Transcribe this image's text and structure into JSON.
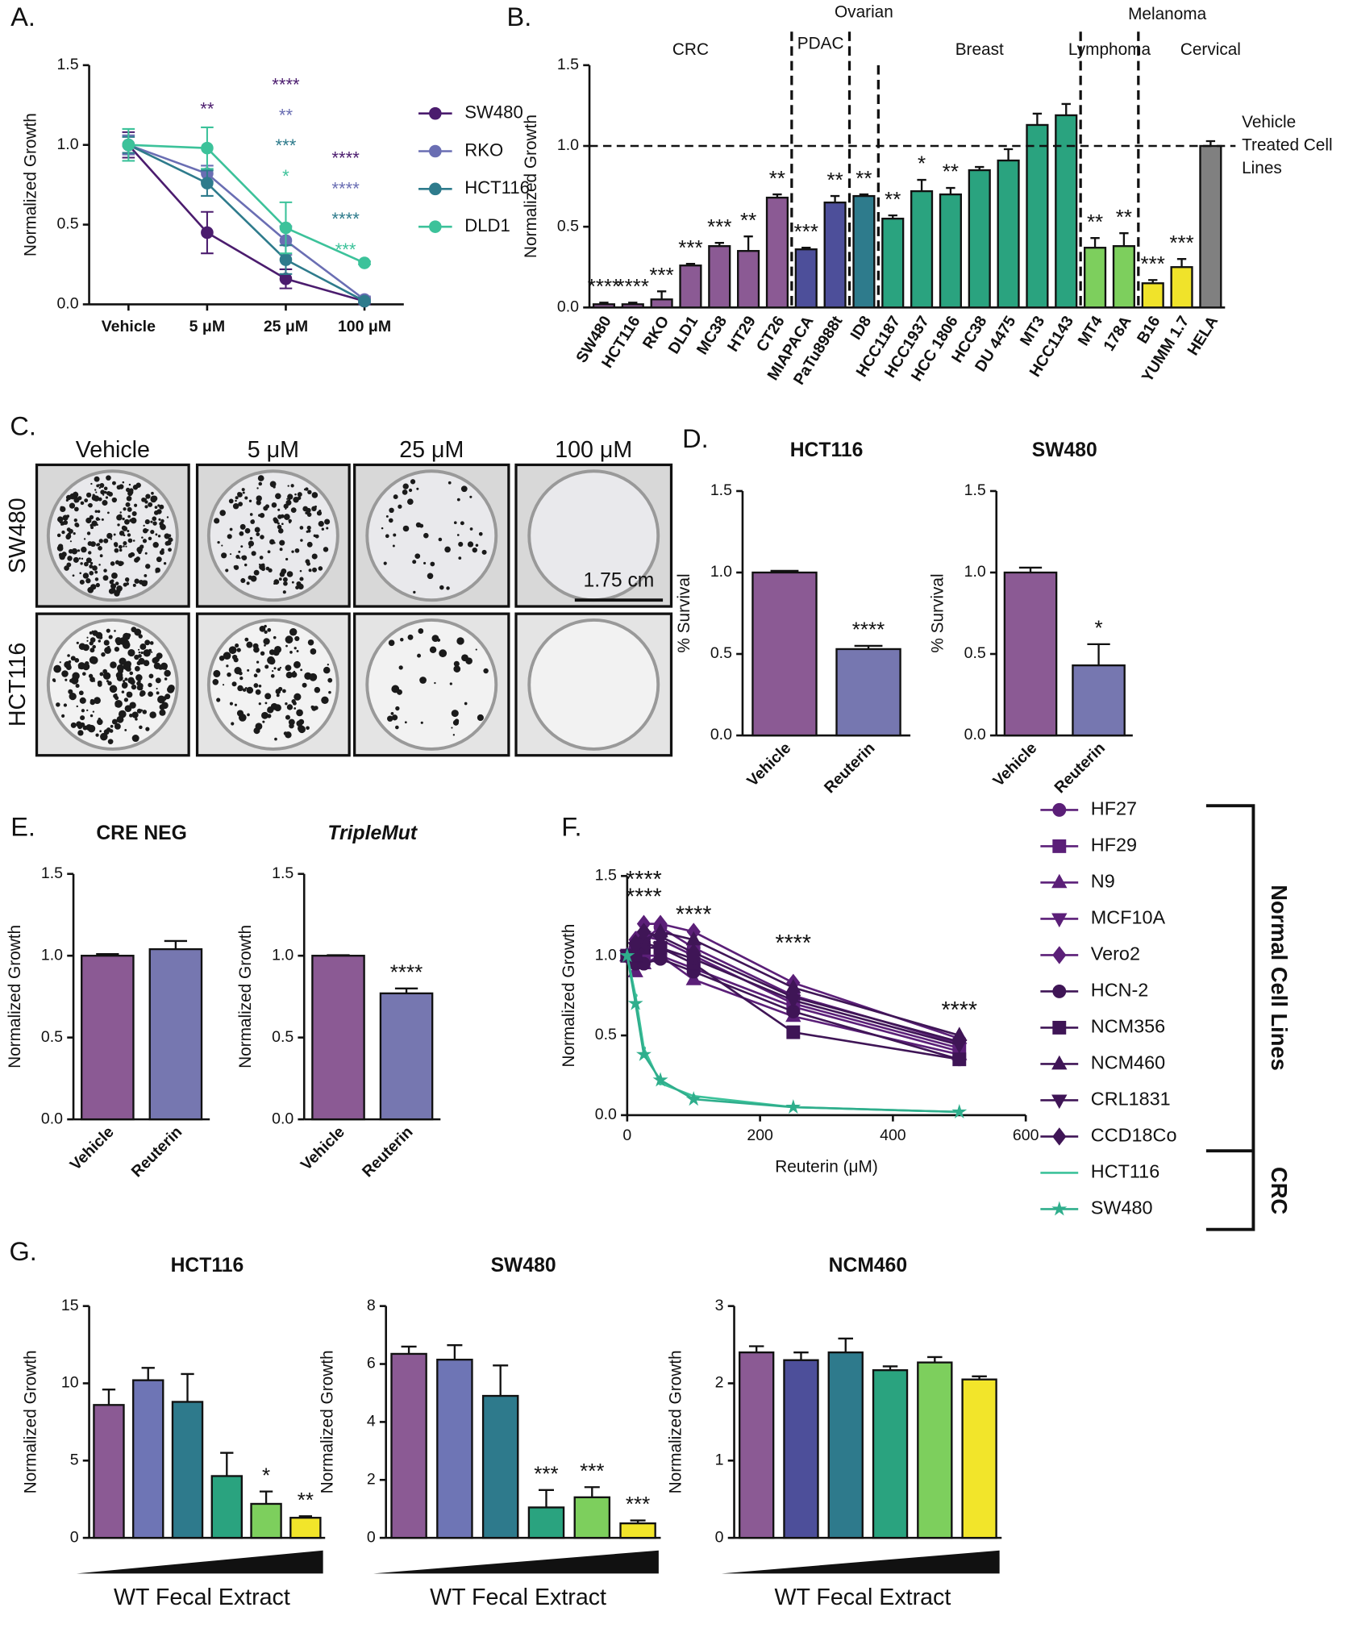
{
  "chart_data": [
    {
      "type": "line",
      "panel": "A.",
      "ylabel": "Normalized Growth",
      "categories": [
        "Vehicle",
        "5 μM",
        "25 μM",
        "100 μM"
      ],
      "ylim": [
        0,
        1.5
      ],
      "yticks": [
        {
          "value": 0,
          "label": "0.0"
        },
        0.5,
        {
          "value": 1,
          "label": "1.0"
        },
        1.5
      ],
      "series": [
        {
          "name": "SW480",
          "color": "#4b1c6e",
          "values": [
            1.0,
            0.45,
            0.16,
            0.02
          ],
          "errors": [
            0.08,
            0.13,
            0.06,
            0.02
          ]
        },
        {
          "name": "RKO",
          "color": "#6a6eb3",
          "values": [
            1.0,
            0.82,
            0.4,
            0.03
          ],
          "errors": [
            0.06,
            0.05,
            0.09,
            0.02
          ]
        },
        {
          "name": "HCT116",
          "color": "#2e7b8c",
          "values": [
            1.0,
            0.76,
            0.28,
            0.02
          ],
          "errors": [
            0.05,
            0.08,
            0.09,
            0.01
          ]
        },
        {
          "name": "DLD1",
          "color": "#3cc29a",
          "values": [
            1.0,
            0.98,
            0.48,
            0.26
          ],
          "errors": [
            0.1,
            0.13,
            0.16,
            0.01
          ]
        }
      ],
      "annotations": [
        {
          "text": "**",
          "category": 1,
          "series": 0
        },
        {
          "text": "****",
          "category": 2,
          "series": 0
        },
        {
          "text": "**",
          "category": 2,
          "series": 1
        },
        {
          "text": "***",
          "category": 2,
          "series": 2
        },
        {
          "text": "*",
          "category": 2,
          "series": 3
        },
        {
          "text": "****",
          "category": 3,
          "series": 0
        },
        {
          "text": "****",
          "category": 3,
          "series": 1
        },
        {
          "text": "****",
          "category": 3,
          "series": 2
        },
        {
          "text": "***",
          "category": 3,
          "series": 3
        }
      ]
    },
    {
      "type": "bar",
      "panel": "B.",
      "ylabel": "Normalized Growth",
      "categories": [
        "SW480",
        "HCT116",
        "RKO",
        "DLD1",
        "MC38",
        "HT29",
        "CT26",
        "MIAPACA",
        "PaTu8988t",
        "ID8",
        "HCC1187",
        "HCC1937",
        "HCC 1806",
        "HCC38",
        "DU 4475",
        "MT3",
        "HCC1143",
        "MT4",
        "178A",
        "B16",
        "YUMM 1.7",
        "HELA"
      ],
      "values": [
        0.02,
        0.02,
        0.05,
        0.26,
        0.38,
        0.35,
        0.68,
        0.36,
        0.65,
        0.69,
        0.55,
        0.72,
        0.7,
        0.85,
        0.91,
        1.13,
        1.19,
        0.37,
        0.38,
        0.15,
        0.25,
        1.0
      ],
      "errors": [
        0.01,
        0.01,
        0.05,
        0.01,
        0.02,
        0.09,
        0.02,
        0.01,
        0.04,
        0.01,
        0.02,
        0.07,
        0.04,
        0.02,
        0.07,
        0.07,
        0.07,
        0.06,
        0.08,
        0.02,
        0.05,
        0.03
      ],
      "colors": [
        "#8b5a94",
        "#8b5a94",
        "#8b5a94",
        "#8b5a94",
        "#8b5a94",
        "#8b5a94",
        "#8b5a94",
        "#4d4f9a",
        "#4d4f9a",
        "#2e7b8c",
        "#2aa37f",
        "#2aa37f",
        "#2aa37f",
        "#2aa37f",
        "#2aa37f",
        "#2aa37f",
        "#2aa37f",
        "#7dcf5d",
        "#7dcf5d",
        "#f0e32a",
        "#f0e32a",
        "#808080"
      ],
      "annotations": [
        "****",
        "****",
        "***",
        "***",
        "***",
        "**",
        "**",
        "***",
        "**",
        "**",
        "**",
        "*",
        "**",
        null,
        null,
        null,
        null,
        "**",
        "**",
        "***",
        "***",
        null
      ],
      "groups": [
        "CRC",
        "PDAC",
        "Ovarian",
        "Breast",
        "Lymphoma",
        "Melanoma",
        "Cervical"
      ],
      "reference_line": 1,
      "reference_label": [
        "Vehicle",
        "Treated Cell",
        "Lines"
      ],
      "ylim": [
        0,
        1.5
      ],
      "yticks": [
        {
          "value": 0,
          "label": "0.0"
        },
        0.5,
        {
          "value": 1,
          "label": "1.0"
        },
        1.5
      ]
    },
    {
      "type": "bar",
      "panel": "D.",
      "title": "HCT116",
      "ylabel": "% Survival",
      "categories": [
        "Vehicle",
        "Reuterin"
      ],
      "values": [
        1.0,
        0.53
      ],
      "errors": [
        0.01,
        0.02
      ],
      "colors": [
        "#8b5a94",
        "#7677b0"
      ],
      "annotations": [
        null,
        "****"
      ],
      "ylim": [
        0,
        1.5
      ],
      "yticks": [
        {
          "value": 0,
          "label": "0.0"
        },
        0.5,
        {
          "value": 1,
          "label": "1.0"
        },
        1.5
      ]
    },
    {
      "type": "bar",
      "title": "SW480",
      "ylabel": "% Survival",
      "categories": [
        "Vehicle",
        "Reuterin"
      ],
      "values": [
        1.0,
        0.43
      ],
      "errors": [
        0.03,
        0.13
      ],
      "colors": [
        "#8b5a94",
        "#7677b0"
      ],
      "annotations": [
        null,
        "*"
      ],
      "ylim": [
        0,
        1.5
      ],
      "yticks": [
        {
          "value": 0,
          "label": "0.0"
        },
        0.5,
        {
          "value": 1,
          "label": "1.0"
        },
        1.5
      ]
    },
    {
      "type": "bar",
      "panel": "E.",
      "title": "CRE NEG",
      "ylabel": "Normalized Growth",
      "categories": [
        "Vehicle",
        "Reuterin"
      ],
      "values": [
        1.0,
        1.04
      ],
      "errors": [
        0.01,
        0.05
      ],
      "colors": [
        "#8b5a94",
        "#7677b0"
      ],
      "ylim": [
        0,
        1.5
      ],
      "yticks": [
        {
          "value": 0,
          "label": "0.0"
        },
        0.5,
        {
          "value": 1,
          "label": "1.0"
        },
        1.5
      ]
    },
    {
      "type": "bar",
      "title": "TripleMut",
      "title_style": "italic",
      "ylabel": "Normalized Growth",
      "categories": [
        "Vehicle",
        "Reuterin"
      ],
      "values": [
        1.0,
        0.77
      ],
      "errors": [
        0.003,
        0.03
      ],
      "colors": [
        "#8b5a94",
        "#7677b0"
      ],
      "annotations": [
        null,
        "****"
      ],
      "ylim": [
        0,
        1.5
      ],
      "yticks": [
        {
          "value": 0,
          "label": "0.0"
        },
        0.5,
        {
          "value": 1,
          "label": "1.0"
        },
        1.5
      ]
    },
    {
      "type": "line",
      "panel": "F.",
      "ylabel": "Normalized Growth",
      "xlabel": "Reuterin (μM)",
      "x": [
        0,
        12.5,
        25,
        50,
        100,
        250,
        500
      ],
      "xlim": [
        0,
        600
      ],
      "xticks": [
        0,
        200,
        400,
        600
      ],
      "ylim": [
        0,
        1.5
      ],
      "yticks": [
        {
          "value": 0,
          "label": "0.0"
        },
        0.5,
        {
          "value": 1,
          "label": "1.0"
        },
        1.5
      ],
      "series": [
        {
          "name": "HF27",
          "color": "#5b1f78",
          "marker": "circle",
          "values": [
            1.0,
            1.05,
            1.1,
            1.18,
            1.05,
            0.75,
            0.45
          ]
        },
        {
          "name": "HF29",
          "color": "#5b1f78",
          "marker": "square",
          "values": [
            1.0,
            0.98,
            1.0,
            1.0,
            0.92,
            0.68,
            0.4
          ]
        },
        {
          "name": "N9",
          "color": "#5b1f78",
          "marker": "triangle",
          "values": [
            1.0,
            0.9,
            0.95,
            1.0,
            0.85,
            0.62,
            0.38
          ]
        },
        {
          "name": "MCF10A",
          "color": "#5b1f78",
          "marker": "triangle-down",
          "values": [
            1.0,
            1.05,
            1.12,
            1.1,
            1.0,
            0.7,
            0.42
          ]
        },
        {
          "name": "Vero2",
          "color": "#5b1f78",
          "marker": "diamond",
          "values": [
            1.0,
            1.1,
            1.2,
            1.2,
            1.15,
            0.83,
            0.48
          ]
        },
        {
          "name": "HCN-2",
          "color": "#3f1556",
          "marker": "circle",
          "values": [
            1.0,
            0.95,
            0.95,
            0.98,
            0.9,
            0.65,
            0.35
          ]
        },
        {
          "name": "NCM356",
          "color": "#3f1556",
          "marker": "square",
          "values": [
            1.0,
            1.0,
            1.05,
            1.05,
            0.95,
            0.52,
            0.35
          ]
        },
        {
          "name": "NCM460",
          "color": "#3f1556",
          "marker": "triangle",
          "values": [
            1.0,
            1.0,
            1.1,
            1.15,
            1.1,
            0.8,
            0.5
          ]
        },
        {
          "name": "CRL1831",
          "color": "#3f1556",
          "marker": "triangle-down",
          "values": [
            1.0,
            1.05,
            1.08,
            1.05,
            0.98,
            0.72,
            0.44
          ]
        },
        {
          "name": "CCD18Co",
          "color": "#3f1556",
          "marker": "diamond",
          "values": [
            1.0,
            1.08,
            1.15,
            1.12,
            1.02,
            0.74,
            0.46
          ]
        },
        {
          "name": "HCT116",
          "color": "#3cc29a",
          "marker": "none",
          "values": [
            1.0,
            0.75,
            0.42,
            0.2,
            0.12,
            0.05,
            0.02
          ]
        },
        {
          "name": "SW480",
          "color": "#2fae8c",
          "marker": "star",
          "values": [
            1.0,
            0.7,
            0.38,
            0.22,
            0.1,
            0.05,
            0.02
          ]
        }
      ],
      "legend_groups": [
        "Normal Cell Lines",
        "CRC"
      ],
      "annotations": [
        {
          "text": "****",
          "x": 25,
          "y": 1.47
        },
        {
          "text": "****",
          "x": 25,
          "y": 1.36
        },
        {
          "text": "****",
          "x": 100,
          "y": 1.25
        },
        {
          "text": "****",
          "x": 250,
          "y": 1.07
        },
        {
          "text": "****",
          "x": 500,
          "y": 0.65
        }
      ]
    },
    {
      "type": "bar",
      "panel": "G.",
      "title": "HCT116",
      "ylabel": "Normalized Growth",
      "xlabel": "WT Fecal Extract",
      "categories": [
        null,
        null,
        null,
        null,
        null,
        null
      ],
      "values": [
        8.6,
        10.2,
        8.8,
        4.0,
        2.2,
        1.3
      ],
      "errors": [
        1.0,
        0.8,
        1.8,
        1.5,
        0.8,
        0.1
      ],
      "colors": [
        "#8b5a94",
        "#6e75b5",
        "#2e7a8c",
        "#2aa37f",
        "#7dcf5d",
        "#f2e52a"
      ],
      "annotations": [
        null,
        null,
        null,
        null,
        "*",
        "**"
      ],
      "ylim": [
        0,
        15
      ],
      "yticks": [
        0,
        5,
        10,
        15
      ]
    },
    {
      "type": "bar",
      "title": "SW480",
      "ylabel": "Normalized Growth",
      "xlabel": "WT Fecal Extract",
      "categories": [
        null,
        null,
        null,
        null,
        null,
        null
      ],
      "values": [
        6.35,
        6.15,
        4.9,
        1.05,
        1.4,
        0.5
      ],
      "errors": [
        0.25,
        0.5,
        1.05,
        0.6,
        0.35,
        0.1
      ],
      "colors": [
        "#8b5a94",
        "#6e75b5",
        "#2e7a8c",
        "#2aa37f",
        "#7dcf5d",
        "#f2e52a"
      ],
      "annotations": [
        null,
        null,
        null,
        "***",
        "***",
        "***"
      ],
      "ylim": [
        0,
        8
      ],
      "yticks": [
        0,
        2,
        4,
        6,
        8
      ]
    },
    {
      "type": "bar",
      "title": "NCM460",
      "ylabel": "Normalized Growth",
      "xlabel": "WT Fecal Extract",
      "categories": [
        null,
        null,
        null,
        null,
        null,
        null
      ],
      "values": [
        2.4,
        2.3,
        2.4,
        2.17,
        2.27,
        2.05
      ],
      "errors": [
        0.08,
        0.1,
        0.18,
        0.05,
        0.07,
        0.04
      ],
      "colors": [
        "#8b5a94",
        "#4d4f9a",
        "#2e7a8c",
        "#2aa37f",
        "#7dcf5d",
        "#f2e52a"
      ],
      "ylim": [
        0,
        3
      ],
      "yticks": [
        0,
        1,
        2,
        3
      ]
    }
  ],
  "panel_c": {
    "panel": "C.",
    "columns": [
      "Vehicle",
      "5 μM",
      "25 μM",
      "100 μM"
    ],
    "rows": [
      "SW480",
      "HCT116"
    ],
    "scale_bar": "1.75 cm"
  }
}
